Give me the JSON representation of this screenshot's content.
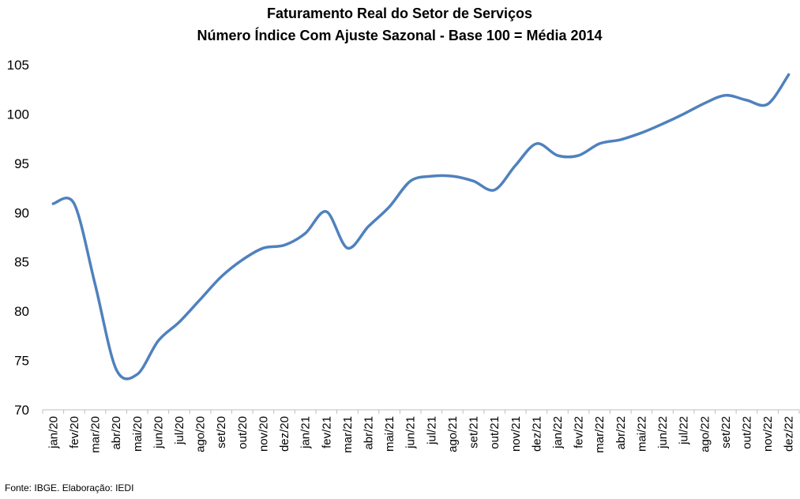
{
  "chart_data": {
    "type": "line",
    "title": "Faturamento Real do Setor de Serviços",
    "subtitle": "Número Índice Com Ajuste Sazonal - Base 100 = Média 2014",
    "xlabel": "",
    "ylabel": "",
    "ylim": [
      70,
      105
    ],
    "yticks": [
      "70",
      "75",
      "80",
      "85",
      "90",
      "95",
      "100",
      "105"
    ],
    "grid": false,
    "legend": "none",
    "categories": [
      "jan/20",
      "fev/20",
      "mar/20",
      "abr/20",
      "mai/20",
      "jun/20",
      "jul/20",
      "ago/20",
      "set/20",
      "out/20",
      "nov/20",
      "dez/20",
      "jan/21",
      "fev/21",
      "mar/21",
      "abr/21",
      "mai/21",
      "jun/21",
      "jul/21",
      "ago/21",
      "set/21",
      "out/21",
      "nov/21",
      "dez/21",
      "jan/22",
      "fev/22",
      "mar/22",
      "abr/22",
      "mai/22",
      "jun/22",
      "jul/22",
      "ago/22",
      "set/22",
      "out/22",
      "nov/22",
      "dez/22"
    ],
    "series": [
      {
        "color": "#4f81bd",
        "values": [
          90.9,
          90.9,
          82.7,
          74.1,
          73.6,
          77.0,
          78.9,
          81.2,
          83.5,
          85.2,
          86.4,
          86.7,
          87.9,
          90.1,
          86.4,
          88.6,
          90.6,
          93.2,
          93.7,
          93.7,
          93.2,
          92.3,
          94.8,
          97.0,
          95.8,
          95.8,
          97.0,
          97.4,
          98.1,
          99.0,
          100.0,
          101.1,
          101.9,
          101.4,
          101.0,
          104.0
        ]
      }
    ]
  },
  "source": "Fonte: IBGE. Elaboração: IEDI"
}
